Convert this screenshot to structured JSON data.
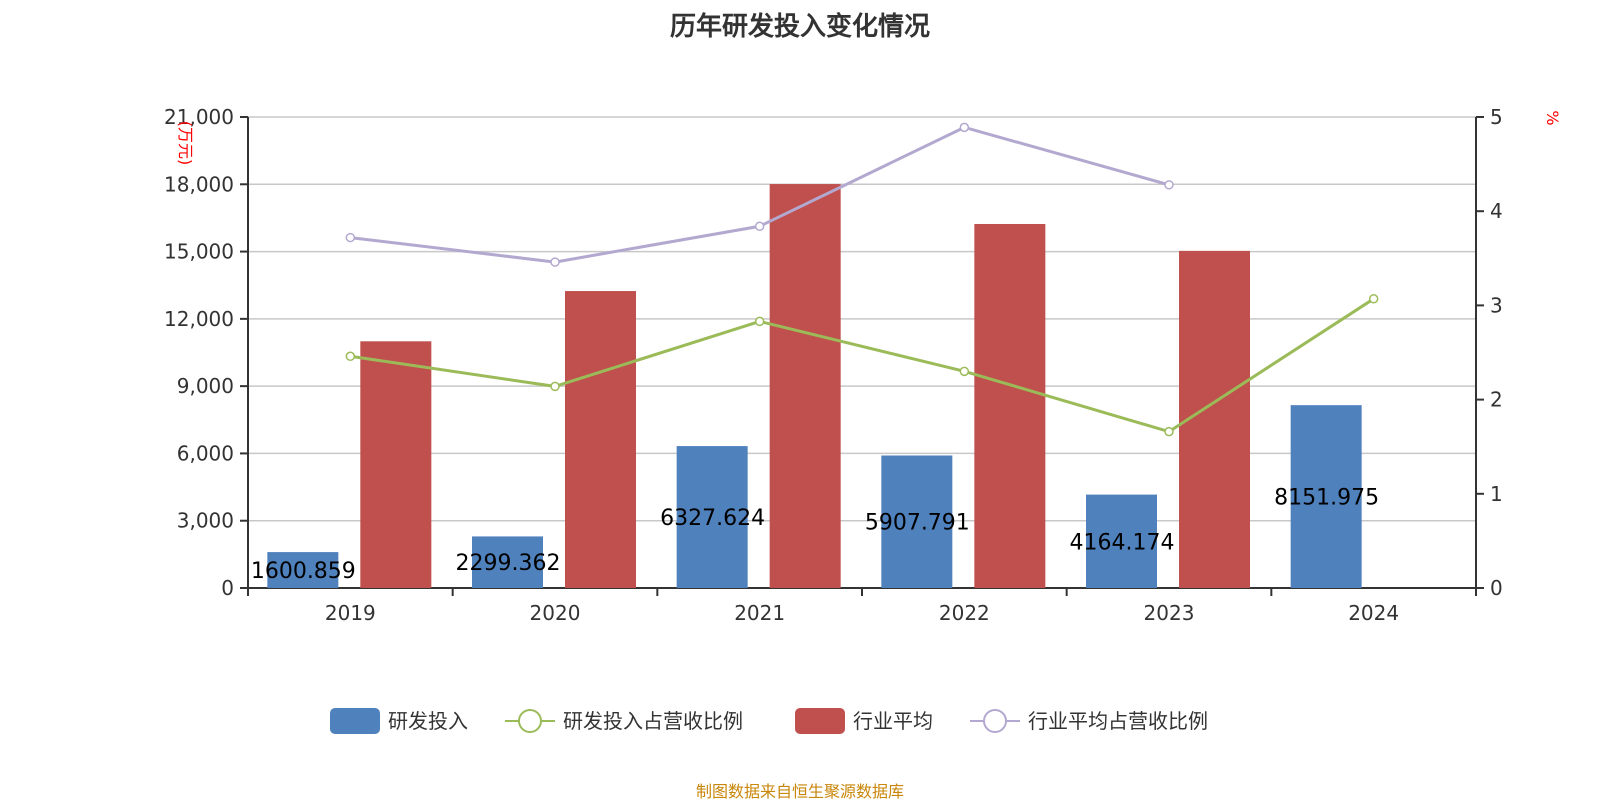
{
  "chart_data": {
    "type": "bar",
    "title": "历年研发投入变化情况",
    "categories": [
      "2019",
      "2020",
      "2021",
      "2022",
      "2023",
      "2024"
    ],
    "y_left": {
      "label": "(万元)",
      "range": [
        0,
        21000
      ],
      "ticks": [
        "0",
        "3,000",
        "6,000",
        "9,000",
        "12,000",
        "15,000",
        "18,000",
        "21,000"
      ]
    },
    "y_right": {
      "label": "%",
      "range": [
        0,
        5
      ],
      "ticks": [
        "0",
        "1",
        "2",
        "3",
        "4",
        "5"
      ]
    },
    "grid": true,
    "legend_position": "bottom",
    "series": [
      {
        "name": "研发投入",
        "type": "bar",
        "axis": "left",
        "color": "#4f81bd",
        "values": [
          1600.859,
          2299.362,
          6327.624,
          5907.791,
          4164.174,
          8151.975
        ],
        "labels": [
          "1600.859",
          "2299.362",
          "6327.624",
          "5907.791",
          "4164.174",
          "8151.975"
        ]
      },
      {
        "name": "研发投入占营收比例",
        "type": "line",
        "axis": "right",
        "color": "#9bbb59",
        "values": [
          2.46,
          2.14,
          2.83,
          2.3,
          1.66,
          3.07
        ]
      },
      {
        "name": "行业平均",
        "type": "bar",
        "axis": "left",
        "color": "#c0504d",
        "values": [
          11000,
          13240,
          18010,
          16230,
          15030,
          null
        ]
      },
      {
        "name": "行业平均占营收比例",
        "type": "line",
        "axis": "right",
        "color": "#b3a8cf",
        "values": [
          3.72,
          3.46,
          3.84,
          4.89,
          4.28,
          null
        ]
      }
    ]
  },
  "footer": "制图数据来自恒生聚源数据库"
}
